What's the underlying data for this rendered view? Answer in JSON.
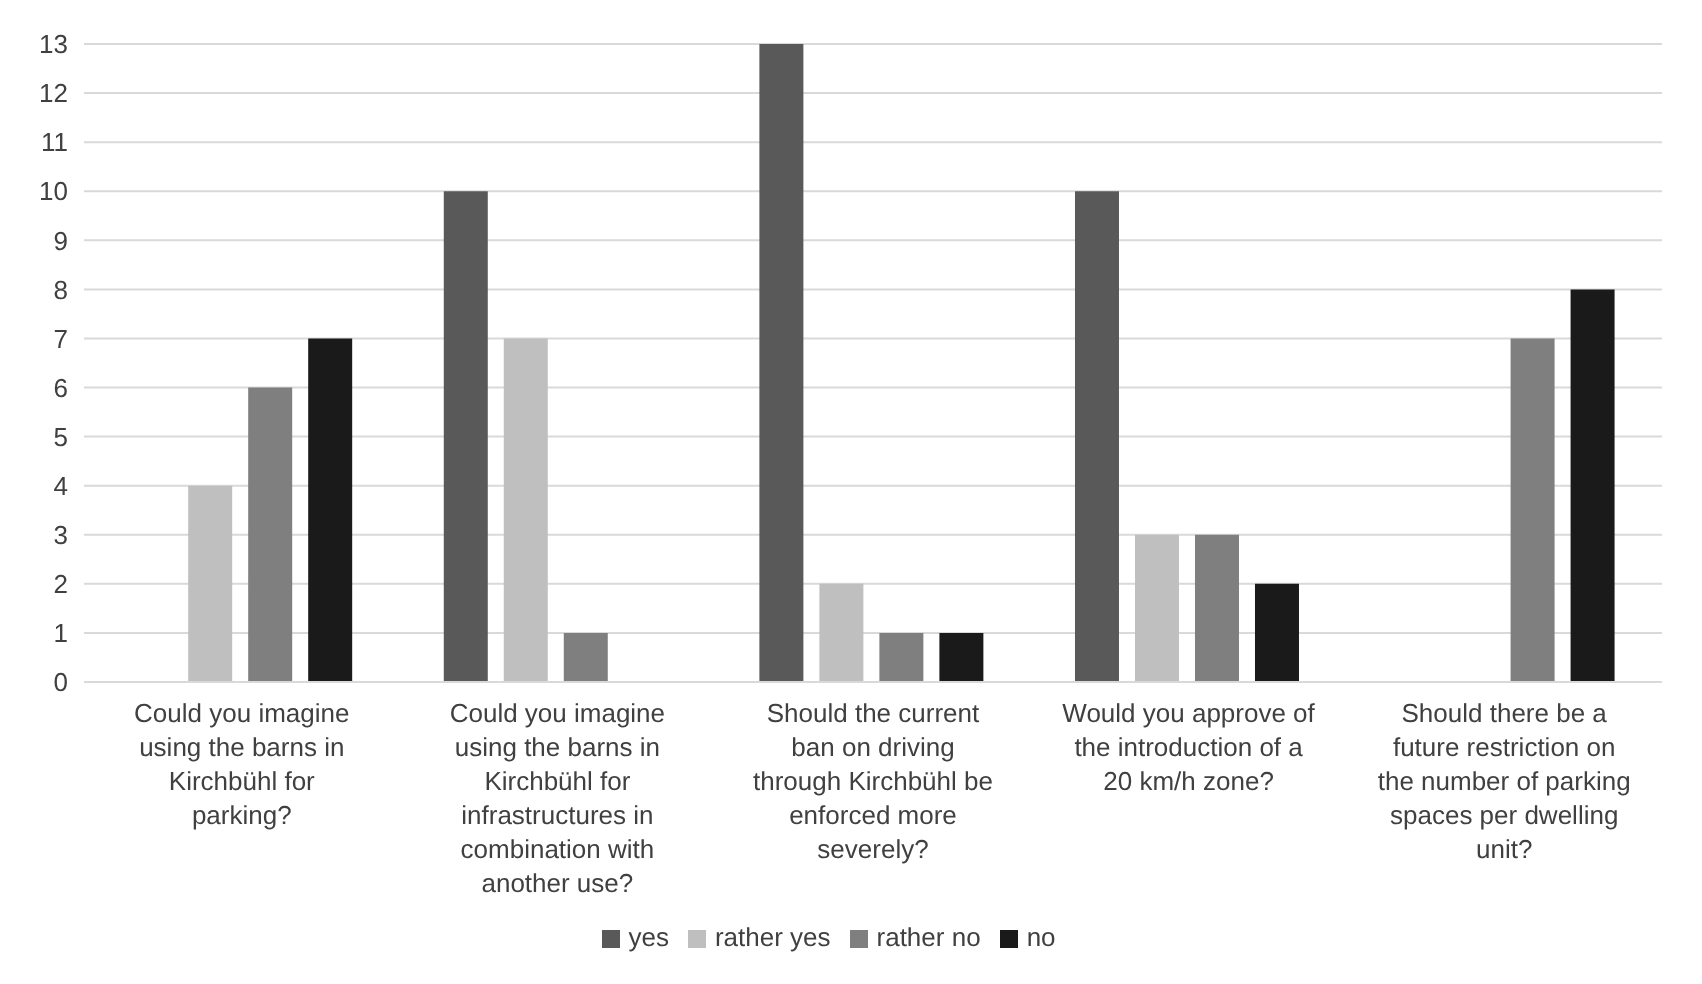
{
  "chart_data": {
    "type": "bar",
    "categories": [
      "Could you imagine using the barns in Kirchbühl for parking?",
      "Could you imagine using the barns in Kirchbühl for infrastructures in combination with another use?",
      "Should the current ban on driving through Kirchbühl be enforced more severely?",
      "Would you approve of the introduction of a 20 km/h zone?",
      "Should there be a future restriction on the number of parking spaces per dwelling unit?"
    ],
    "series": [
      {
        "name": "yes",
        "color": "#595959",
        "values": [
          0,
          10,
          13,
          10,
          0
        ]
      },
      {
        "name": "rather yes",
        "color": "#bfbfbf",
        "values": [
          4,
          7,
          2,
          3,
          0
        ]
      },
      {
        "name": "rather no",
        "color": "#7f7f7f",
        "values": [
          6,
          1,
          1,
          3,
          7
        ]
      },
      {
        "name": "no",
        "color": "#1a1a1a",
        "values": [
          7,
          0,
          1,
          2,
          8
        ]
      }
    ],
    "ylim": [
      0,
      13
    ],
    "yticks": [
      0,
      1,
      2,
      3,
      4,
      5,
      6,
      7,
      8,
      9,
      10,
      11,
      12,
      13
    ],
    "grid": "y",
    "legend": "bottom"
  }
}
